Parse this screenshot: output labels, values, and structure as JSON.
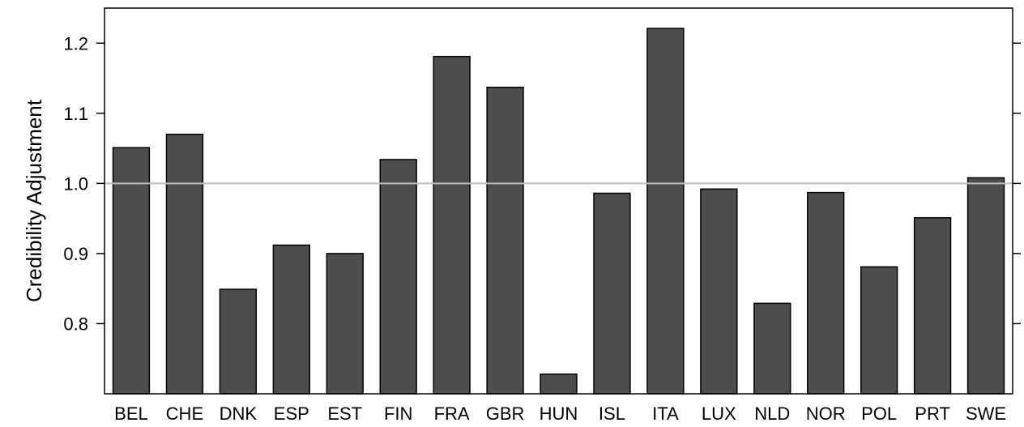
{
  "chart_data": {
    "type": "bar",
    "title": "",
    "xlabel": "",
    "ylabel": "Credibility Adjustment",
    "categories": [
      "BEL",
      "CHE",
      "DNK",
      "ESP",
      "EST",
      "FIN",
      "FRA",
      "GBR",
      "HUN",
      "ISL",
      "ITA",
      "LUX",
      "NLD",
      "NOR",
      "POL",
      "PRT",
      "SWE"
    ],
    "values": [
      1.051,
      1.07,
      0.849,
      0.912,
      0.9,
      1.034,
      1.181,
      1.137,
      0.728,
      0.986,
      1.221,
      0.992,
      0.829,
      0.987,
      0.881,
      0.951,
      1.008
    ],
    "ylim": [
      0.7,
      1.25
    ],
    "yticks": [
      0.8,
      0.9,
      1.0,
      1.1,
      1.2
    ],
    "ytick_labels": [
      "0.8",
      "0.9",
      "1.0",
      "1.1",
      "1.2"
    ],
    "reference_line": 1.0,
    "grid": false,
    "colors": {
      "bar_fill": "#4d4d4d",
      "bar_stroke": "#000000",
      "reference_line": "#bebebe"
    }
  }
}
